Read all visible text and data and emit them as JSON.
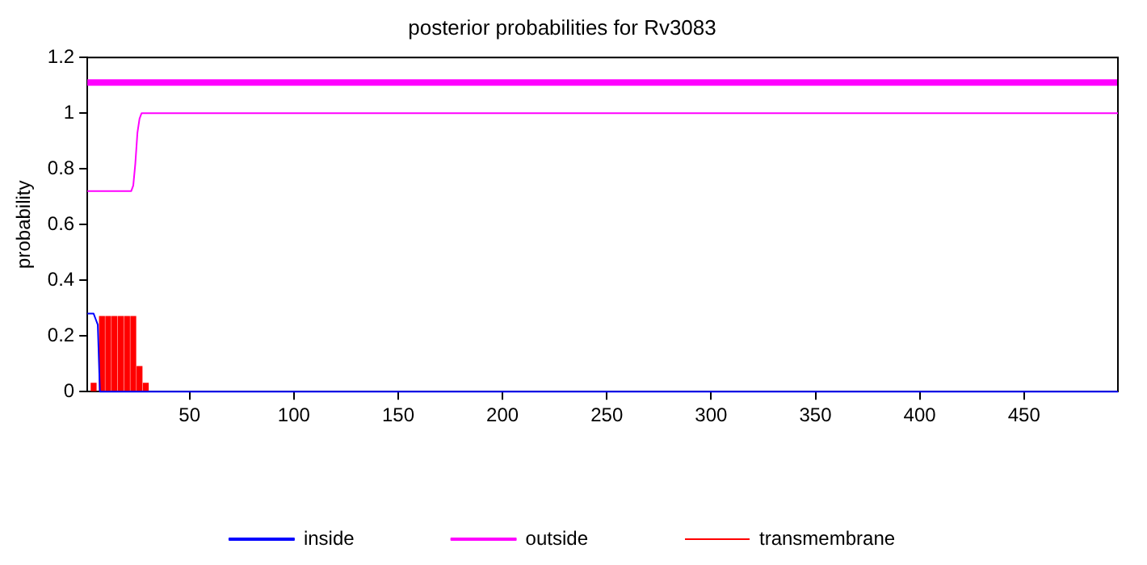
{
  "chart_data": {
    "type": "line",
    "title": "posterior probabilities for Rv3083",
    "ylabel": "probability",
    "xlim": [
      1,
      495
    ],
    "xticks": [
      50,
      100,
      150,
      200,
      250,
      300,
      350,
      400,
      450
    ],
    "ylim": [
      0,
      1.2
    ],
    "yticks": [
      0,
      0.2,
      0.4,
      0.6,
      0.8,
      1,
      1.2
    ],
    "grid": false,
    "legend": "bottom",
    "marker": "none",
    "ref_lines": [
      {
        "axis": "y",
        "value": 1.11,
        "color": "#ff00ff"
      }
    ],
    "series": [
      {
        "name": "transmembrane",
        "type": "bar",
        "color": "#ff0000",
        "x": [
          4,
          8,
          11,
          14,
          17,
          20,
          23,
          26,
          29
        ],
        "values": [
          0.03,
          0.27,
          0.27,
          0.27,
          0.27,
          0.27,
          0.27,
          0.09,
          0.03
        ]
      },
      {
        "name": "inside",
        "color": "#0000ff",
        "x": [
          1,
          4,
          5,
          6,
          7,
          495
        ],
        "values": [
          0.28,
          0.28,
          0.26,
          0.24,
          0,
          0
        ]
      },
      {
        "name": "outside",
        "color": "#ff00ff",
        "x": [
          1,
          22,
          23,
          24,
          25,
          26,
          27,
          495
        ],
        "values": [
          0.72,
          0.72,
          0.74,
          0.82,
          0.93,
          0.98,
          1,
          1
        ]
      }
    ]
  }
}
